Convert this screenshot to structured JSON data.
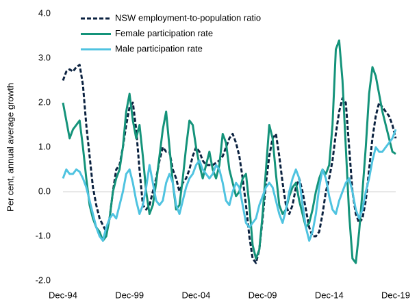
{
  "chart_data": {
    "type": "line",
    "y_label": "Per cent, annual average growth",
    "categories": [
      "Dec-94",
      "Mar-95",
      "Jun-95",
      "Sep-95",
      "Dec-95",
      "Mar-96",
      "Jun-96",
      "Sep-96",
      "Dec-96",
      "Mar-97",
      "Jun-97",
      "Sep-97",
      "Dec-97",
      "Mar-98",
      "Jun-98",
      "Sep-98",
      "Dec-98",
      "Mar-99",
      "Jun-99",
      "Sep-99",
      "Dec-99",
      "Mar-00",
      "Jun-00",
      "Sep-00",
      "Dec-00",
      "Mar-01",
      "Jun-01",
      "Sep-01",
      "Dec-01",
      "Mar-02",
      "Jun-02",
      "Sep-02",
      "Dec-02",
      "Mar-03",
      "Jun-03",
      "Sep-03",
      "Dec-03",
      "Mar-04",
      "Jun-04",
      "Sep-04",
      "Dec-04",
      "Mar-05",
      "Jun-05",
      "Sep-05",
      "Dec-05",
      "Mar-06",
      "Jun-06",
      "Sep-06",
      "Dec-06",
      "Mar-07",
      "Jun-07",
      "Sep-07",
      "Dec-07",
      "Mar-08",
      "Jun-08",
      "Sep-08",
      "Dec-08",
      "Mar-09",
      "Jun-09",
      "Sep-09",
      "Dec-09",
      "Mar-10",
      "Jun-10",
      "Sep-10",
      "Dec-10",
      "Mar-11",
      "Jun-11",
      "Sep-11",
      "Dec-11",
      "Mar-12",
      "Jun-12",
      "Sep-12",
      "Dec-12",
      "Mar-13",
      "Jun-13",
      "Sep-13",
      "Dec-13",
      "Mar-14",
      "Jun-14",
      "Sep-14",
      "Dec-14",
      "Mar-15",
      "Jun-15",
      "Sep-15",
      "Dec-15",
      "Mar-16",
      "Jun-16",
      "Sep-16",
      "Dec-16",
      "Mar-17",
      "Jun-17",
      "Sep-17",
      "Dec-17",
      "Mar-18",
      "Jun-18",
      "Sep-18",
      "Dec-18",
      "Mar-19",
      "Jun-19",
      "Sep-19",
      "Dec-19"
    ],
    "xticks": [
      "Dec-94",
      "Dec-99",
      "Dec-04",
      "Dec-09",
      "Dec-14",
      "Dec-19"
    ],
    "ylim": [
      -2,
      4
    ],
    "yticks": [
      {
        "value": -2,
        "label": "-2.0"
      },
      {
        "value": -1,
        "label": "-1.0"
      },
      {
        "value": 0,
        "label": "0.0"
      },
      {
        "value": 1,
        "label": "1.0"
      },
      {
        "value": 2,
        "label": "2.0"
      },
      {
        "value": 3,
        "label": "3.0"
      },
      {
        "value": 4,
        "label": "4.0"
      }
    ],
    "series": [
      {
        "name": "NSW employment-to-population ratio",
        "color": "#0b2240",
        "dashed": true,
        "values": [
          2.5,
          2.7,
          2.75,
          2.7,
          2.8,
          2.85,
          2.4,
          1.5,
          0.8,
          0.1,
          -0.3,
          -0.6,
          -0.75,
          -0.9,
          -0.6,
          0.0,
          0.5,
          0.6,
          1.0,
          1.5,
          1.9,
          2.0,
          1.4,
          0.5,
          -0.3,
          -0.4,
          -0.3,
          0.0,
          0.3,
          0.7,
          1.0,
          0.9,
          0.9,
          0.5,
          0.3,
          0.0,
          0.2,
          0.3,
          0.5,
          0.8,
          1.0,
          0.9,
          0.7,
          0.6,
          0.6,
          0.6,
          0.65,
          0.7,
          0.8,
          1.0,
          1.2,
          1.3,
          1.1,
          0.8,
          0.3,
          -0.3,
          -1.0,
          -1.5,
          -1.6,
          -1.3,
          -0.6,
          0.2,
          0.8,
          1.2,
          1.3,
          0.8,
          0.2,
          -0.3,
          -0.5,
          -0.3,
          0.1,
          0.3,
          0.0,
          -0.4,
          -0.8,
          -1.0,
          -1.0,
          -0.9,
          -0.5,
          0.0,
          0.3,
          0.7,
          1.3,
          1.8,
          2.1,
          2.0,
          1.0,
          0.0,
          -0.5,
          -0.7,
          -0.6,
          -0.2,
          0.5,
          1.2,
          1.7,
          2.0,
          1.9,
          1.8,
          1.7,
          1.5,
          1.2
        ]
      },
      {
        "name": "Female participation rate",
        "color": "#14937a",
        "dashed": false,
        "values": [
          2.0,
          1.6,
          1.2,
          1.4,
          1.5,
          1.6,
          1.0,
          0.3,
          -0.3,
          -0.6,
          -0.8,
          -0.9,
          -1.1,
          -1.0,
          -0.6,
          0.0,
          0.3,
          0.5,
          1.0,
          1.8,
          2.2,
          1.6,
          1.2,
          1.5,
          0.8,
          0.0,
          -0.5,
          -0.3,
          0.2,
          0.8,
          1.4,
          1.8,
          1.0,
          0.2,
          -0.4,
          -0.3,
          0.3,
          1.0,
          1.6,
          1.5,
          1.0,
          0.6,
          0.3,
          0.6,
          0.9,
          0.5,
          0.3,
          0.6,
          1.3,
          1.1,
          0.5,
          0.2,
          -0.1,
          0.0,
          0.3,
          0.4,
          -0.3,
          -1.2,
          -1.5,
          -1.3,
          -0.5,
          0.5,
          1.5,
          1.2,
          0.4,
          -0.3,
          -0.5,
          -0.4,
          -0.1,
          0.1,
          0.2,
          -0.2,
          -0.5,
          -0.8,
          -0.7,
          -0.4,
          0.0,
          0.3,
          0.5,
          0.4,
          0.6,
          1.5,
          3.2,
          3.4,
          2.5,
          1.0,
          -0.5,
          -1.5,
          -1.6,
          -0.9,
          0.0,
          1.0,
          2.2,
          2.8,
          2.6,
          2.2,
          1.8,
          1.5,
          1.2,
          0.9,
          0.85
        ]
      },
      {
        "name": "Male participation rate",
        "color": "#4fc3e0",
        "dashed": false,
        "values": [
          0.3,
          0.5,
          0.4,
          0.4,
          0.5,
          0.45,
          0.3,
          0.1,
          -0.2,
          -0.5,
          -0.8,
          -1.0,
          -1.1,
          -0.8,
          -0.6,
          -0.5,
          -0.6,
          -0.3,
          0.0,
          0.4,
          0.5,
          0.2,
          -0.2,
          -0.5,
          -0.3,
          0.1,
          0.6,
          0.2,
          -0.2,
          -0.3,
          -0.2,
          0.2,
          0.4,
          0.2,
          -0.3,
          -0.5,
          -0.2,
          0.1,
          0.3,
          0.4,
          0.6,
          0.7,
          0.5,
          0.4,
          0.3,
          0.4,
          0.6,
          0.5,
          0.2,
          -0.2,
          -0.3,
          0.0,
          0.2,
          0.1,
          -0.3,
          -0.7,
          -0.8,
          -0.7,
          -0.6,
          -0.3,
          -0.1,
          0.1,
          0.2,
          0.1,
          -0.2,
          -0.5,
          -0.7,
          -0.4,
          0.0,
          0.3,
          0.5,
          0.3,
          -0.3,
          -0.8,
          -1.1,
          -0.9,
          -0.5,
          0.1,
          0.5,
          0.3,
          -0.1,
          -0.4,
          -0.5,
          -0.2,
          0.0,
          0.2,
          0.3,
          0.0,
          -0.4,
          -0.6,
          -0.4,
          0.0,
          0.3,
          0.7,
          1.0,
          0.9,
          0.9,
          1.0,
          1.1,
          1.2,
          1.4
        ]
      }
    ]
  }
}
